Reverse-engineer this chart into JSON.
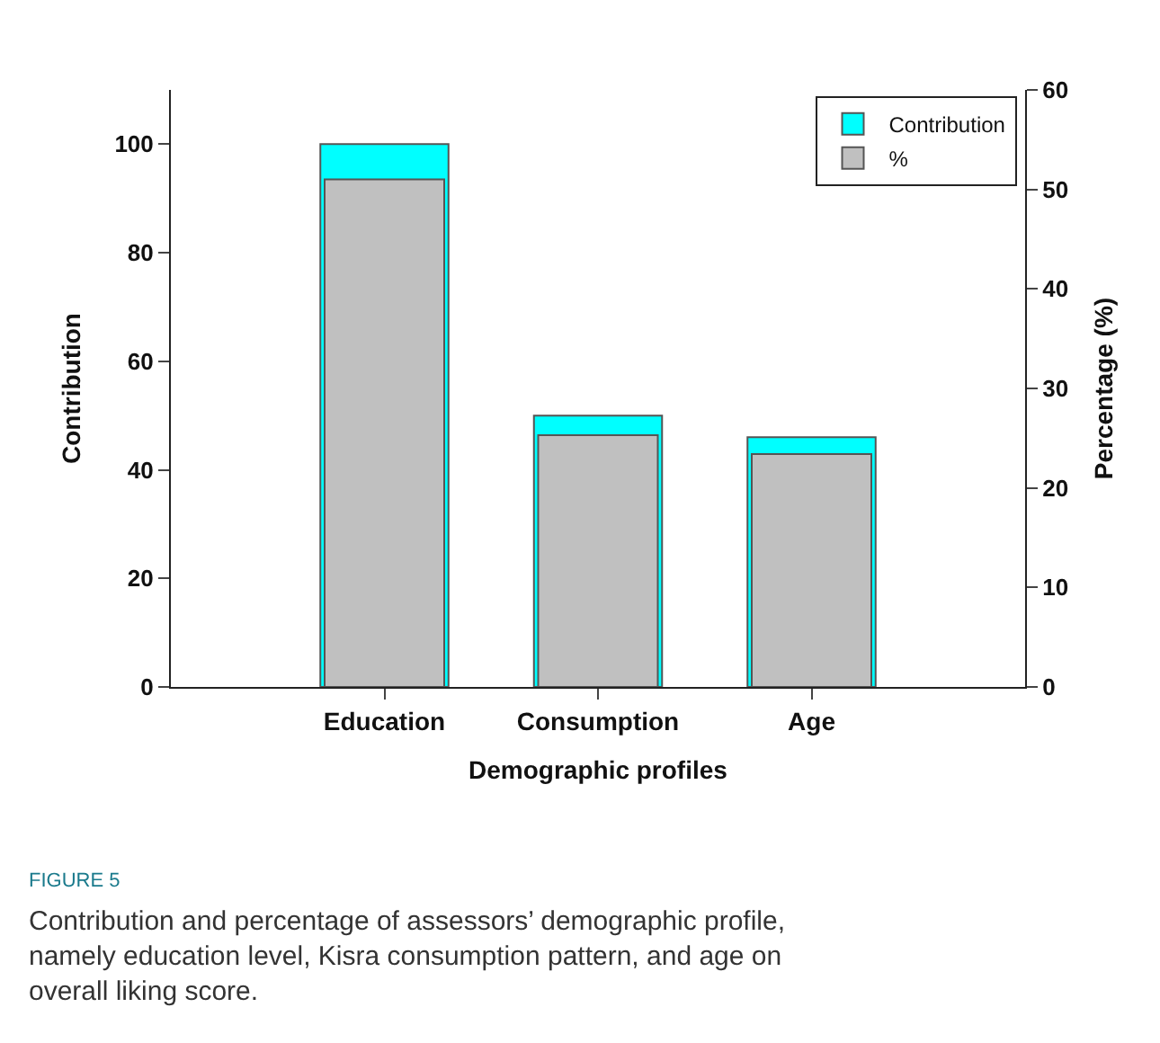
{
  "chart_data": {
    "type": "bar",
    "xlabel": "Demographic profiles",
    "ylabel": "Contribution",
    "y2label": "Percentage (%)",
    "categories": [
      "Education",
      "Consumption",
      "Age"
    ],
    "series": [
      {
        "name": "Contribution",
        "color": "#00ffff",
        "values": [
          100,
          50,
          46
        ]
      },
      {
        "name": "%",
        "color": "#c0c0c0",
        "values": [
          51,
          25.3,
          23.4
        ],
        "axis": "y2"
      }
    ],
    "ylim": [
      0,
      110
    ],
    "yticks": [
      0,
      20,
      40,
      60,
      80,
      100
    ],
    "y2lim": [
      0,
      60
    ],
    "y2ticks": [
      0,
      10,
      20,
      30,
      40,
      50,
      60
    ],
    "legend": "top right",
    "annotations": [
      "FIGURE 5",
      "Contribution and percentage of assessors’ demographic profile, namely education level, Kisra consumption pattern, and age on overall liking score."
    ]
  }
}
